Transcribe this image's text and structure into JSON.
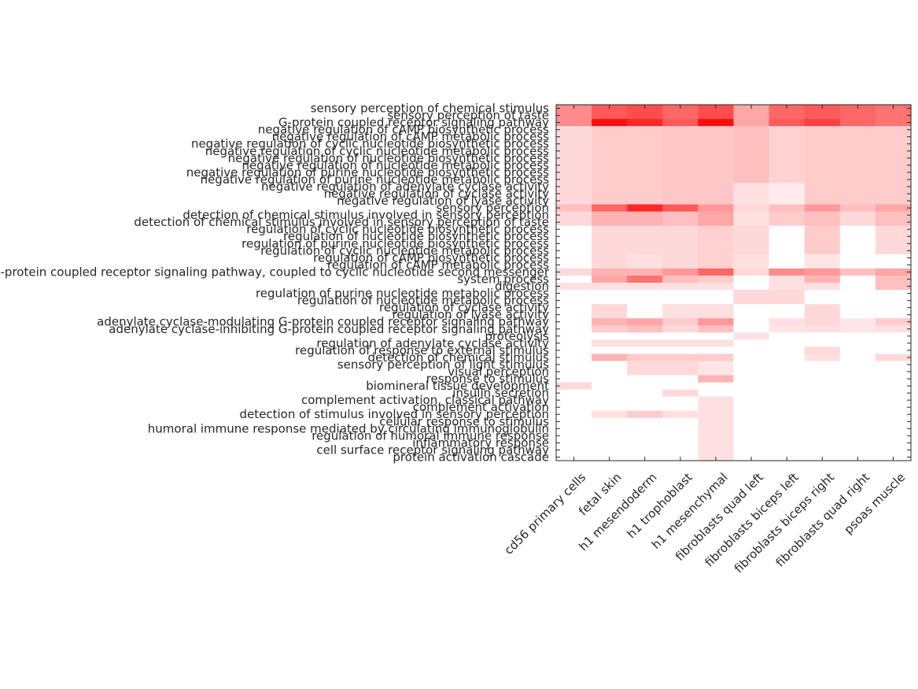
{
  "chart_data": {
    "type": "heatmap",
    "columns": [
      "cd56 primary cells",
      "fetal skin",
      "h1 mesendoderm",
      "h1 trophoblast",
      "h1 mesenchymal",
      "fibroblasts quad left",
      "fibroblasts biceps left",
      "fibroblasts biceps right",
      "fibroblasts quad right",
      "psoas muscle"
    ],
    "rows": [
      "sensory perception of chemical stimulus",
      "sensory perception of taste",
      "G-protein coupled receptor signaling pathway",
      "negative regulation of cAMP biosynthetic process",
      "negative regulation of cAMP metabolic process",
      "negative regulation of cyclic nucleotide biosynthetic process",
      "negative regulation of cyclic nucleotide metabolic process",
      "negative regulation of nucleotide biosynthetic process",
      "negative regulation of nucleotide metabolic process",
      "negative regulation of purine nucleotide biosynthetic process",
      "negative regulation of purine nucleotide metabolic process",
      "negative regulation of adenylate cyclase activity",
      "negative regulation of cyclase activity",
      "negative regulation of lyase activity",
      "sensory perception",
      "detection of chemical stimulus involved in sensory perception",
      "detection of chemical stimulus involved in sensory perception of taste",
      "regulation of cyclic nucleotide biosynthetic process",
      "regulation of nucleotide biosynthetic process",
      "regulation of purine nucleotide biosynthetic process",
      "regulation of cyclic nucleotide metabolic process",
      "regulation of cAMP biosynthetic process",
      "regulation of cAMP metabolic process",
      "G-protein coupled receptor signaling pathway, coupled to cyclic nucleotide second messenger",
      "system process",
      "digestion",
      "regulation of purine nucleotide metabolic process",
      "regulation of nucleotide metabolic process",
      "regulation of cyclase activity",
      "regulation of lyase activity",
      "adenylate cyclase-modulating G-protein coupled receptor signaling pathway",
      "adenylate cyclase-inhibiting G-protein coupled receptor signaling pathway",
      "proteolysis",
      "regulation of adenylate cyclase activity",
      "regulation of response to external stimulus",
      "detection of chemical stimulus",
      "sensory perception of light stimulus",
      "visual perception",
      "response to stimulus",
      "biomineral tissue development",
      "insulin secretion",
      "complement activation, classical pathway",
      "complement activation",
      "detection of stimulus involved in sensory perception",
      "cellular response to stimulus",
      "humoral immune response mediated by circulating immunoglobulin",
      "regulation of humoral immune response",
      "inflammatory response",
      "cell surface receptor signaling pathway",
      "protein activation cascade"
    ],
    "values": [
      [
        0.45,
        0.65,
        0.7,
        0.6,
        0.7,
        0.35,
        0.6,
        0.65,
        0.6,
        0.55
      ],
      [
        0.45,
        0.65,
        0.7,
        0.6,
        0.7,
        0.35,
        0.6,
        0.65,
        0.6,
        0.55
      ],
      [
        0.45,
        0.95,
        0.85,
        0.65,
        0.95,
        0.35,
        0.65,
        0.75,
        0.6,
        0.55
      ],
      [
        0.15,
        0.2,
        0.2,
        0.22,
        0.22,
        0.25,
        0.18,
        0.2,
        0.2,
        0.2
      ],
      [
        0.15,
        0.2,
        0.2,
        0.22,
        0.22,
        0.25,
        0.18,
        0.2,
        0.2,
        0.2
      ],
      [
        0.15,
        0.2,
        0.2,
        0.22,
        0.22,
        0.25,
        0.18,
        0.2,
        0.2,
        0.2
      ],
      [
        0.15,
        0.2,
        0.2,
        0.22,
        0.22,
        0.25,
        0.18,
        0.2,
        0.2,
        0.2
      ],
      [
        0.15,
        0.2,
        0.2,
        0.22,
        0.22,
        0.25,
        0.18,
        0.2,
        0.2,
        0.2
      ],
      [
        0.15,
        0.2,
        0.2,
        0.22,
        0.22,
        0.25,
        0.18,
        0.2,
        0.2,
        0.2
      ],
      [
        0.15,
        0.2,
        0.2,
        0.22,
        0.22,
        0.25,
        0.18,
        0.2,
        0.2,
        0.2
      ],
      [
        0.15,
        0.2,
        0.2,
        0.22,
        0.22,
        0.25,
        0.18,
        0.2,
        0.2,
        0.2
      ],
      [
        0.15,
        0.2,
        0.2,
        0.22,
        0.22,
        0.12,
        0.08,
        0.2,
        0.2,
        0.2
      ],
      [
        0.15,
        0.2,
        0.2,
        0.22,
        0.22,
        0.12,
        0.08,
        0.2,
        0.2,
        0.2
      ],
      [
        0.15,
        0.2,
        0.2,
        0.22,
        0.22,
        0.12,
        0.08,
        0.2,
        0.2,
        0.2
      ],
      [
        0.25,
        0.6,
        0.85,
        0.65,
        0.4,
        0.15,
        0.25,
        0.4,
        0.25,
        0.35
      ],
      [
        0.15,
        0.3,
        0.3,
        0.25,
        0.35,
        0.12,
        0.2,
        0.25,
        0.15,
        0.25
      ],
      [
        0.15,
        0.3,
        0.3,
        0.25,
        0.35,
        0.12,
        0.2,
        0.25,
        0.15,
        0.25
      ],
      [
        0.0,
        0.15,
        0.15,
        0.15,
        0.18,
        0.15,
        0.0,
        0.2,
        0.0,
        0.15
      ],
      [
        0.0,
        0.15,
        0.15,
        0.15,
        0.18,
        0.15,
        0.0,
        0.2,
        0.0,
        0.15
      ],
      [
        0.0,
        0.15,
        0.15,
        0.15,
        0.18,
        0.15,
        0.0,
        0.2,
        0.0,
        0.15
      ],
      [
        0.0,
        0.15,
        0.15,
        0.15,
        0.18,
        0.15,
        0.0,
        0.2,
        0.0,
        0.15
      ],
      [
        0.0,
        0.15,
        0.12,
        0.15,
        0.18,
        0.12,
        0.0,
        0.1,
        0.0,
        0.0
      ],
      [
        0.0,
        0.15,
        0.12,
        0.15,
        0.18,
        0.12,
        0.0,
        0.1,
        0.0,
        0.0
      ],
      [
        0.15,
        0.3,
        0.3,
        0.4,
        0.6,
        0.15,
        0.45,
        0.4,
        0.25,
        0.35
      ],
      [
        0.0,
        0.35,
        0.55,
        0.25,
        0.2,
        0.0,
        0.12,
        0.3,
        0.0,
        0.25
      ],
      [
        0.12,
        0.12,
        0.12,
        0.12,
        0.12,
        0.0,
        0.12,
        0.12,
        0.0,
        0.25
      ],
      [
        0.0,
        0.0,
        0.0,
        0.0,
        0.0,
        0.15,
        0.15,
        0.0,
        0.0,
        0.0
      ],
      [
        0.0,
        0.0,
        0.0,
        0.0,
        0.0,
        0.15,
        0.15,
        0.0,
        0.0,
        0.0
      ],
      [
        0.0,
        0.15,
        0.0,
        0.12,
        0.12,
        0.0,
        0.0,
        0.15,
        0.0,
        0.0
      ],
      [
        0.0,
        0.15,
        0.0,
        0.12,
        0.12,
        0.0,
        0.0,
        0.15,
        0.0,
        0.0
      ],
      [
        0.0,
        0.3,
        0.35,
        0.2,
        0.4,
        0.0,
        0.12,
        0.15,
        0.1,
        0.2
      ],
      [
        0.0,
        0.2,
        0.25,
        0.15,
        0.25,
        0.0,
        0.1,
        0.12,
        0.1,
        0.12
      ],
      [
        0.0,
        0.0,
        0.0,
        0.0,
        0.0,
        0.12,
        0.0,
        0.0,
        0.0,
        0.0
      ],
      [
        0.0,
        0.12,
        0.12,
        0.12,
        0.12,
        0.0,
        0.0,
        0.0,
        0.0,
        0.0
      ],
      [
        0.0,
        0.0,
        0.0,
        0.0,
        0.0,
        0.0,
        0.0,
        0.15,
        0.0,
        0.0
      ],
      [
        0.0,
        0.3,
        0.2,
        0.2,
        0.2,
        0.0,
        0.0,
        0.12,
        0.0,
        0.15
      ],
      [
        0.0,
        0.0,
        0.15,
        0.15,
        0.1,
        0.0,
        0.0,
        0.0,
        0.0,
        0.0
      ],
      [
        0.0,
        0.0,
        0.15,
        0.15,
        0.1,
        0.0,
        0.0,
        0.0,
        0.0,
        0.0
      ],
      [
        0.0,
        0.0,
        0.0,
        0.0,
        0.3,
        0.0,
        0.0,
        0.0,
        0.0,
        0.0
      ],
      [
        0.15,
        0.0,
        0.0,
        0.0,
        0.0,
        0.0,
        0.0,
        0.0,
        0.0,
        0.0
      ],
      [
        0.0,
        0.0,
        0.0,
        0.15,
        0.0,
        0.0,
        0.0,
        0.0,
        0.0,
        0.0
      ],
      [
        0.0,
        0.0,
        0.0,
        0.0,
        0.12,
        0.0,
        0.0,
        0.0,
        0.0,
        0.0
      ],
      [
        0.0,
        0.0,
        0.0,
        0.0,
        0.12,
        0.0,
        0.0,
        0.0,
        0.0,
        0.0
      ],
      [
        0.0,
        0.12,
        0.2,
        0.12,
        0.12,
        0.0,
        0.0,
        0.0,
        0.0,
        0.0
      ],
      [
        0.0,
        0.0,
        0.0,
        0.0,
        0.12,
        0.0,
        0.0,
        0.0,
        0.0,
        0.0
      ],
      [
        0.0,
        0.0,
        0.0,
        0.0,
        0.12,
        0.0,
        0.0,
        0.0,
        0.0,
        0.0
      ],
      [
        0.0,
        0.0,
        0.0,
        0.0,
        0.12,
        0.0,
        0.0,
        0.0,
        0.0,
        0.0
      ],
      [
        0.0,
        0.0,
        0.0,
        0.0,
        0.12,
        0.0,
        0.0,
        0.0,
        0.0,
        0.0
      ],
      [
        0.0,
        0.0,
        0.0,
        0.0,
        0.12,
        0.0,
        0.0,
        0.0,
        0.0,
        0.0
      ],
      [
        0.0,
        0.0,
        0.0,
        0.0,
        0.12,
        0.0,
        0.0,
        0.0,
        0.0,
        0.0
      ]
    ],
    "colormap": {
      "low": "#ffffff",
      "high": "#ff0000"
    },
    "value_range": [
      0,
      1
    ],
    "grid": false,
    "legend": "none",
    "xlabel": "",
    "ylabel": "",
    "title": ""
  }
}
